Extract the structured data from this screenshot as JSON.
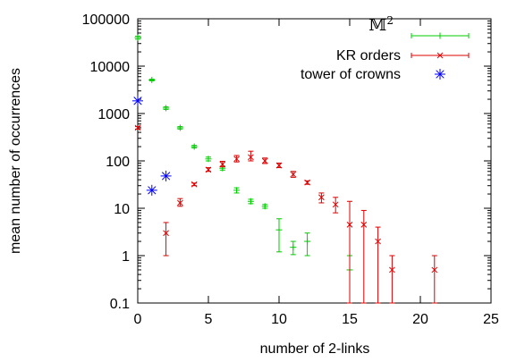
{
  "chart_data": {
    "type": "scatter",
    "title": "",
    "xlabel": "number of 2-links",
    "ylabel": "mean number of occurrences",
    "xlim": [
      0,
      25
    ],
    "ylim": [
      0.1,
      100000
    ],
    "yscale": "log",
    "x_ticks": [
      "0",
      "5",
      "10",
      "15",
      "20",
      "25"
    ],
    "y_ticks": [
      "0.1",
      "1",
      "10",
      "100",
      "1000",
      "10000",
      "100000"
    ],
    "grid": false,
    "legend_position": "top-right",
    "series": [
      {
        "name": "𝕄",
        "name_sup": "2",
        "marker": "plus",
        "color": "#00cc00",
        "points": [
          {
            "x": 0,
            "y": 40000,
            "lo": 37000,
            "hi": 43000
          },
          {
            "x": 1,
            "y": 5100,
            "lo": 4900,
            "hi": 5300
          },
          {
            "x": 2,
            "y": 1300,
            "lo": 1220,
            "hi": 1380
          },
          {
            "x": 3,
            "y": 500,
            "lo": 470,
            "hi": 530
          },
          {
            "x": 4,
            "y": 200,
            "lo": 188,
            "hi": 212
          },
          {
            "x": 5,
            "y": 110,
            "lo": 100,
            "hi": 120
          },
          {
            "x": 6,
            "y": 70,
            "lo": 64,
            "hi": 76
          },
          {
            "x": 7,
            "y": 24,
            "lo": 21,
            "hi": 27
          },
          {
            "x": 8,
            "y": 14,
            "lo": 12.5,
            "hi": 15.5
          },
          {
            "x": 9,
            "y": 11,
            "lo": 10,
            "hi": 12
          },
          {
            "x": 10,
            "y": 3.5,
            "lo": 1.2,
            "hi": 6
          },
          {
            "x": 11,
            "y": 1.5,
            "lo": 1.05,
            "hi": 2
          },
          {
            "x": 12,
            "y": 2,
            "lo": 1,
            "hi": 3
          },
          {
            "x": 15,
            "y": 0.5,
            "lo": 0.1,
            "hi": 1
          }
        ]
      },
      {
        "name": "KR orders",
        "marker": "cross",
        "color": "#dd0000",
        "points": [
          {
            "x": 0,
            "y": 500,
            "lo": 470,
            "hi": 530
          },
          {
            "x": 2,
            "y": 3,
            "lo": 1,
            "hi": 5
          },
          {
            "x": 3,
            "y": 13,
            "lo": 11,
            "hi": 16
          },
          {
            "x": 4,
            "y": 32,
            "lo": 30,
            "hi": 34
          },
          {
            "x": 5,
            "y": 65,
            "lo": 60,
            "hi": 72
          },
          {
            "x": 6,
            "y": 85,
            "lo": 75,
            "hi": 98
          },
          {
            "x": 7,
            "y": 110,
            "lo": 95,
            "hi": 130
          },
          {
            "x": 8,
            "y": 120,
            "lo": 100,
            "hi": 160
          },
          {
            "x": 9,
            "y": 100,
            "lo": 88,
            "hi": 115
          },
          {
            "x": 10,
            "y": 80,
            "lo": 72,
            "hi": 90
          },
          {
            "x": 11,
            "y": 52,
            "lo": 45,
            "hi": 60
          },
          {
            "x": 12,
            "y": 35,
            "lo": 32,
            "hi": 38
          },
          {
            "x": 13,
            "y": 17,
            "lo": 13,
            "hi": 21
          },
          {
            "x": 14,
            "y": 12,
            "lo": 8,
            "hi": 17
          },
          {
            "x": 15,
            "y": 4.5,
            "lo": 0.1,
            "hi": 14
          },
          {
            "x": 16,
            "y": 4.5,
            "lo": 0.1,
            "hi": 9
          },
          {
            "x": 17,
            "y": 2,
            "lo": 0.1,
            "hi": 4
          },
          {
            "x": 18,
            "y": 0.5,
            "lo": 0.1,
            "hi": 1
          },
          {
            "x": 21,
            "y": 0.5,
            "lo": 0.1,
            "hi": 1
          }
        ]
      },
      {
        "name": "tower of crowns",
        "marker": "star",
        "color": "#0000ff",
        "points": [
          {
            "x": 0,
            "y": 1850
          },
          {
            "x": 1,
            "y": 24
          },
          {
            "x": 2,
            "y": 48
          }
        ]
      }
    ]
  }
}
